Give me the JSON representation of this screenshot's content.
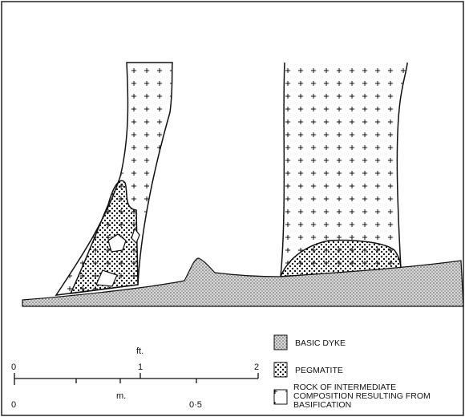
{
  "legend": [
    {
      "label": "BASIC DYKE"
    },
    {
      "label": "PEGMATITE"
    },
    {
      "label": "ROCK OF INTERMEDIATE COMPOSITION RESULTING FROM BASIFICATION"
    }
  ],
  "scale": {
    "feet": {
      "unit": "ft.",
      "ticks": [
        "0",
        "1",
        "2"
      ]
    },
    "metres": {
      "unit": "m.",
      "ticks": [
        "0",
        "0·5"
      ]
    }
  }
}
